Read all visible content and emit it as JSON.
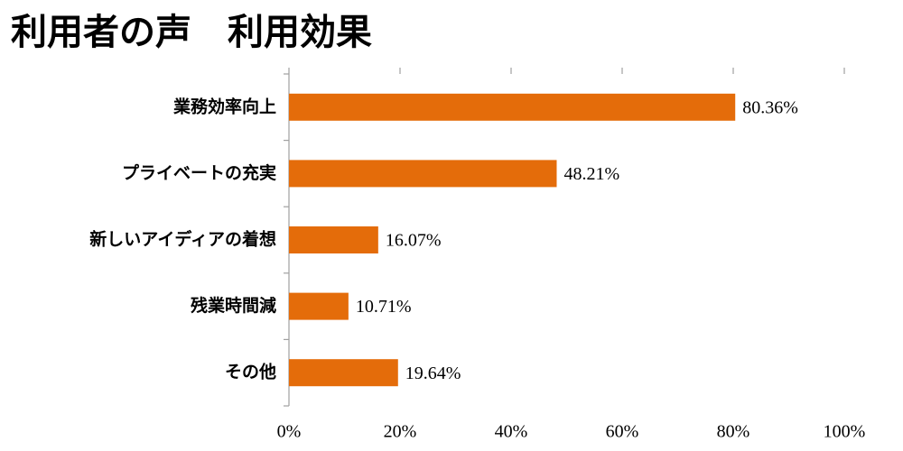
{
  "chart_data": {
    "type": "bar",
    "orientation": "horizontal",
    "title": "利用者の声　利用効果",
    "categories": [
      "業務効率向上",
      "プライベートの充実",
      "新しいアイディアの着想",
      "残業時間減",
      "その他"
    ],
    "values": [
      80.36,
      48.21,
      16.07,
      10.71,
      19.64
    ],
    "value_labels": [
      "80.36%",
      "48.21%",
      "16.07%",
      "10.71%",
      "19.64%"
    ],
    "color": "#e46c0a",
    "xlim": [
      0,
      100
    ],
    "xticks": [
      {
        "value": 0,
        "label": "0%"
      },
      {
        "value": 20,
        "label": "20%"
      },
      {
        "value": 40,
        "label": "40%"
      },
      {
        "value": 60,
        "label": "60%"
      },
      {
        "value": 80,
        "label": "80%"
      },
      {
        "value": 100,
        "label": "100%"
      }
    ],
    "grid": false
  }
}
